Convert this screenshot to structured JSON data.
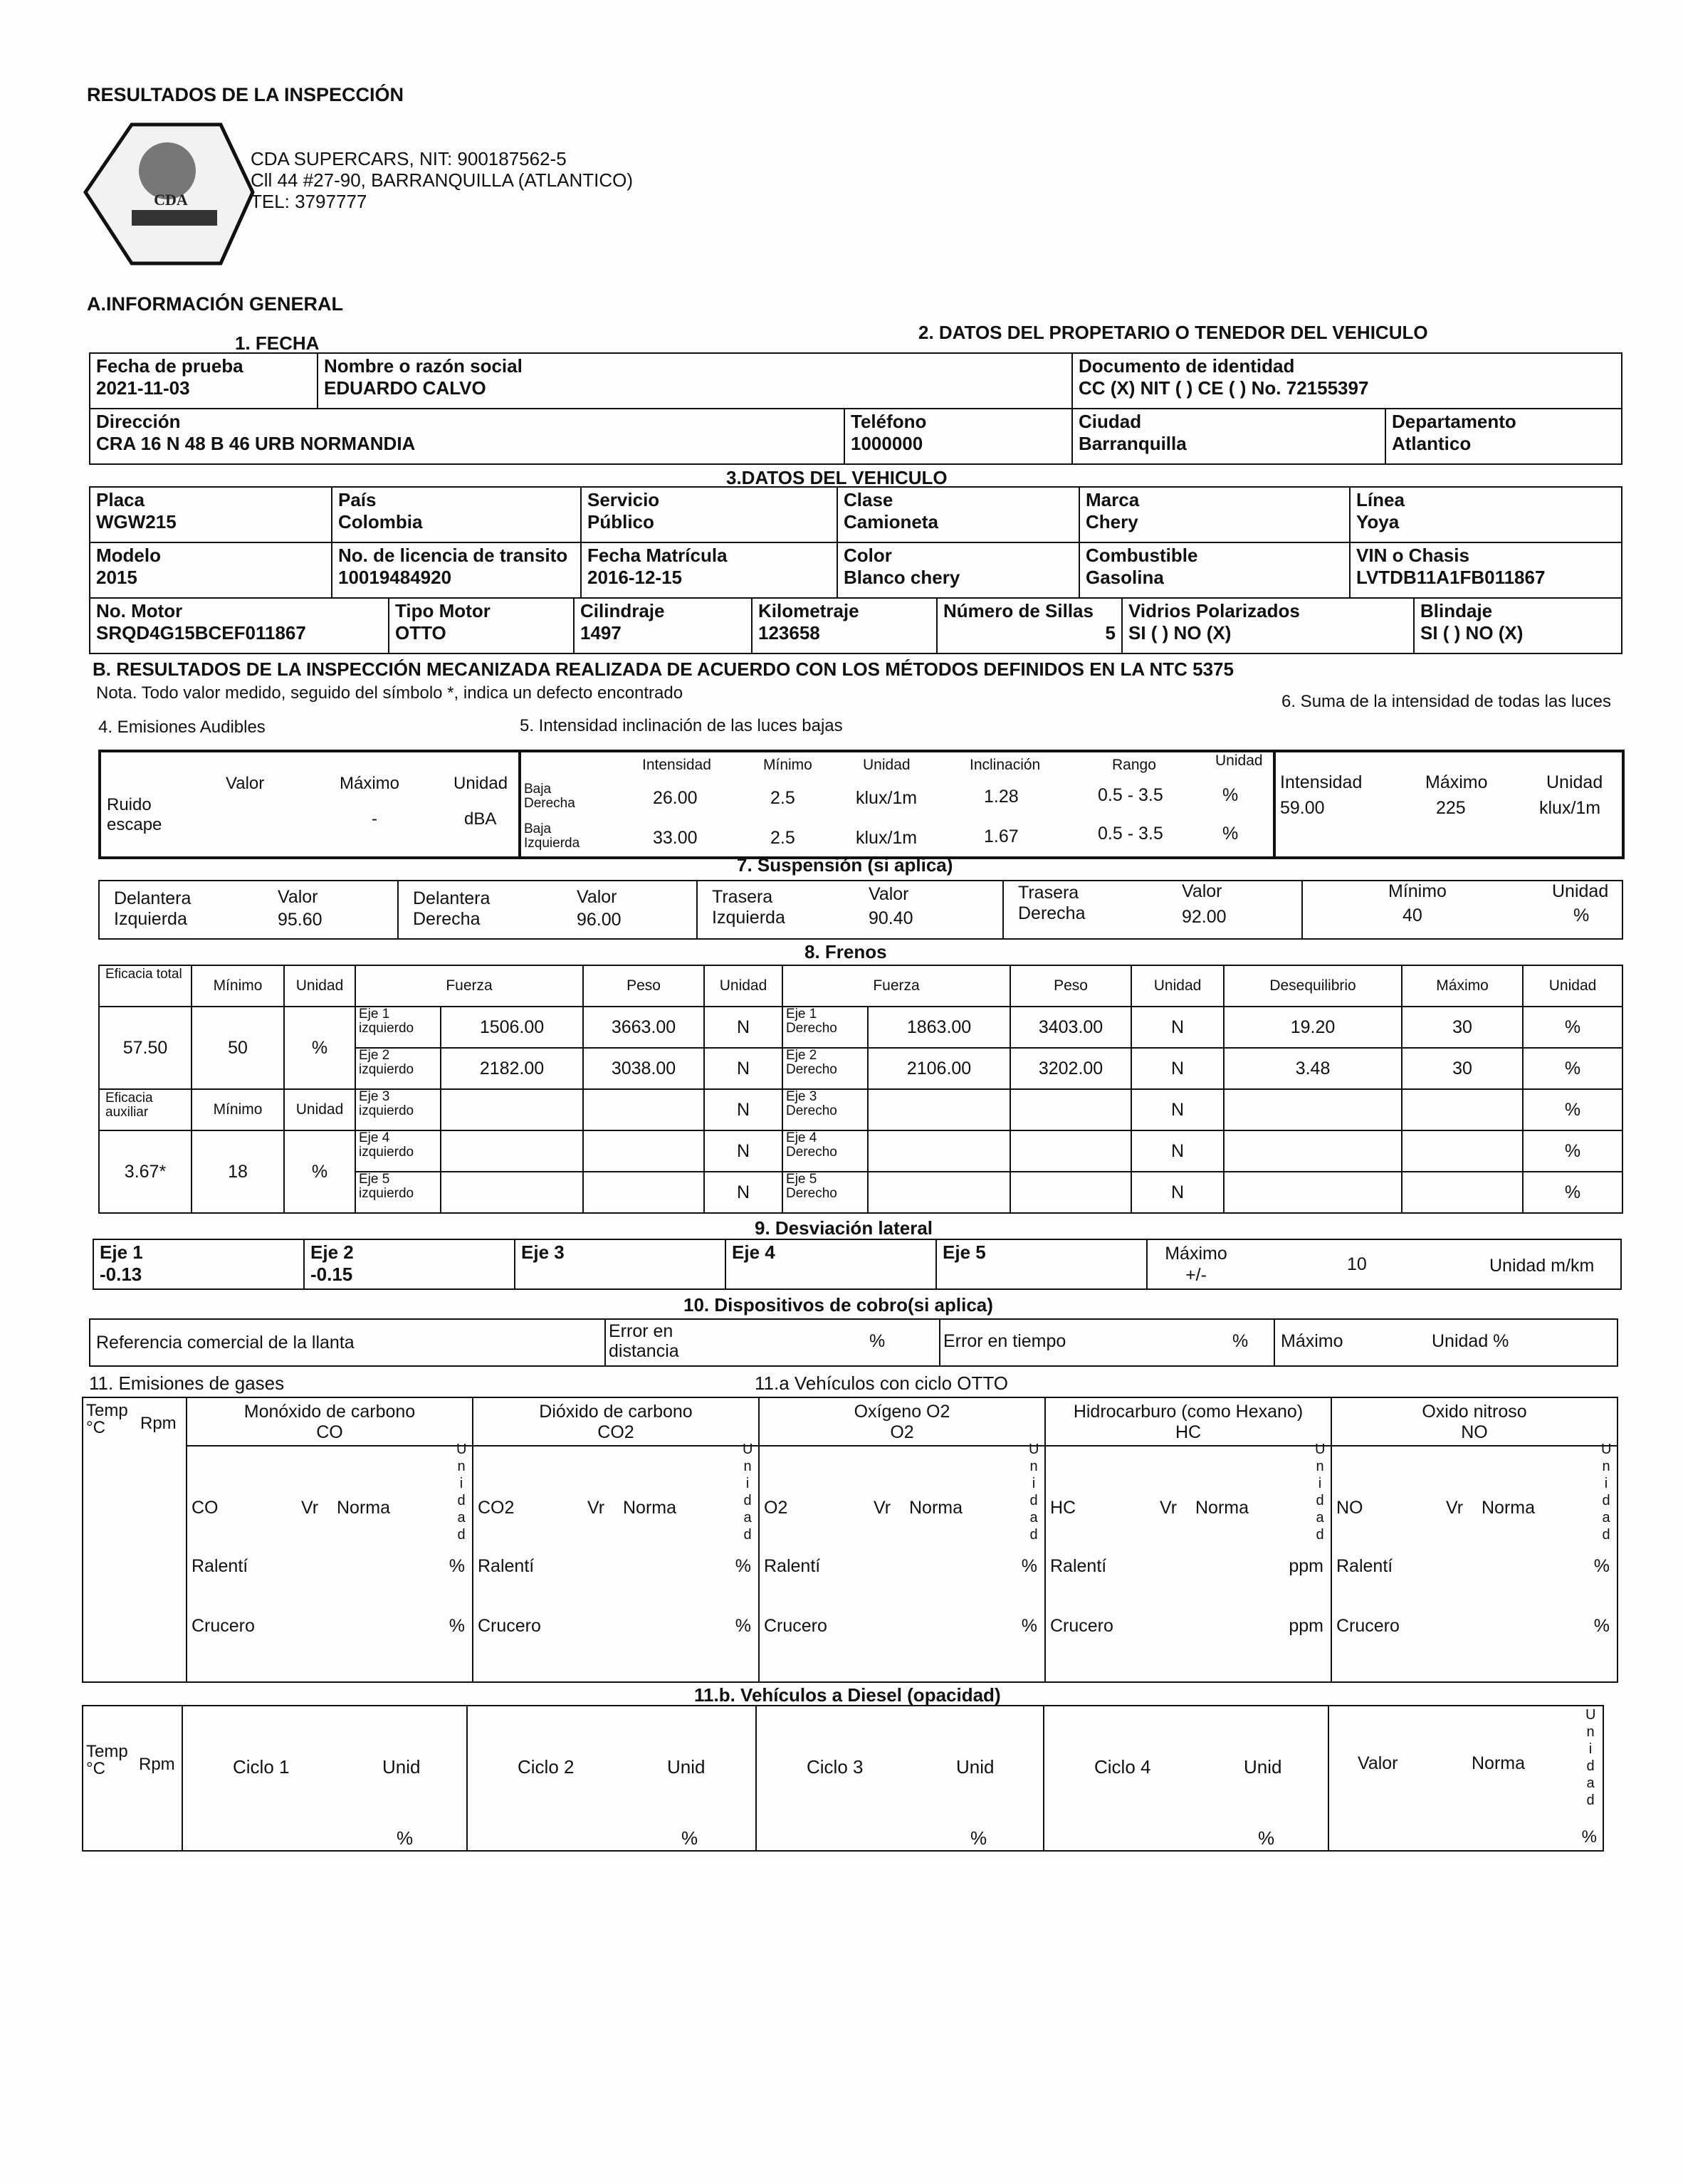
{
  "header": {
    "title": "RESULTADOS DE LA INSPECCIÓN",
    "logo_text": "CDA SUPERCARS",
    "company": "CDA SUPERCARS, NIT: 900187562-5",
    "address": "Cll 44 #27-90, BARRANQUILLA (ATLANTICO)",
    "phone": "TEL: 3797777"
  },
  "general": {
    "section_title": "A.INFORMACIÓN GENERAL",
    "fecha_title": "1. FECHA",
    "owner_title": "2. DATOS DEL PROPETARIO O TENEDOR DEL VEHICULO",
    "fecha_label": "Fecha de prueba",
    "fecha": "2021-11-03",
    "nombre_label": "Nombre o razón social",
    "nombre": "EDUARDO CALVO",
    "doc_label": "Documento de identidad",
    "doc": "CC (X) NIT ( ) CE ( ) No. 72155397",
    "direccion_label": "Dirección",
    "direccion": "CRA 16 N 48 B 46 URB NORMANDIA",
    "telefono_label": "Teléfono",
    "telefono": "1000000",
    "ciudad_label": "Ciudad",
    "ciudad": "Barranquilla",
    "depto_label": "Departamento",
    "depto": "Atlantico"
  },
  "vehicle": {
    "title": "3.DATOS DEL VEHICULO",
    "placa_label": "Placa",
    "placa": "WGW215",
    "pais_label": "País",
    "pais": "Colombia",
    "servicio_label": "Servicio",
    "servicio": "Público",
    "clase_label": "Clase",
    "clase": "Camioneta",
    "marca_label": "Marca",
    "marca": "Chery",
    "linea_label": "Línea",
    "linea": "Yoya",
    "modelo_label": "Modelo",
    "modelo": "2015",
    "licencia_label": "No. de licencia de transito",
    "licencia": "10019484920",
    "matricula_label": "Fecha Matrícula",
    "matricula": "2016-12-15",
    "color_label": "Color",
    "color": "Blanco chery",
    "combustible_label": "Combustible",
    "combustible": "Gasolina",
    "vin_label": "VIN o Chasis",
    "vin": "LVTDB11A1FB011867",
    "motor_label": "No. Motor",
    "motor": "SRQD4G15BCEF011867",
    "tipo_motor_label": "Tipo Motor",
    "tipo_motor": "OTTO",
    "cilindraje_label": "Cilindraje",
    "cilindraje": "1497",
    "km_label": "Kilometraje",
    "km": "123658",
    "sillas_label": "Número de Sillas",
    "sillas": "5",
    "vidrios_label": "Vidrios Polarizados",
    "vidrios": "SI ( ) NO (X)",
    "blindaje_label": "Blindaje",
    "blindaje": "SI ( ) NO (X)"
  },
  "results": {
    "title": "B. RESULTADOS DE LA INSPECCIÓN MECANIZADA REALIZADA DE ACUERDO CON LOS MÉTODOS DEFINIDOS EN LA NTC 5375",
    "note": "Nota. Todo valor medido, seguido del símbolo *, indica un defecto encontrado"
  },
  "audibles": {
    "title": "4. Emisiones Audibles",
    "valor_label": "Valor",
    "maximo_label": "Máximo",
    "unidad_label": "Unidad",
    "row_label": "Ruido escape",
    "valor": "",
    "maximo": "-",
    "unidad": "dBA"
  },
  "luces": {
    "title": "5. Intensidad inclinación de las luces bajas",
    "headers": [
      "Intensidad",
      "Mínimo",
      "Unidad",
      "Inclinación",
      "Rango",
      "Unidad"
    ],
    "rows": [
      {
        "label": "Baja Derecha",
        "intensidad": "26.00",
        "minimo": "2.5",
        "unidad": "klux/1m",
        "inclinacion": "1.28",
        "rango": "0.5 - 3.5",
        "unidad2": "%"
      },
      {
        "label": "Baja Izquierda",
        "intensidad": "33.00",
        "minimo": "2.5",
        "unidad": "klux/1m",
        "inclinacion": "1.67",
        "rango": "0.5 - 3.5",
        "unidad2": "%"
      }
    ]
  },
  "suma_luces": {
    "title": "6. Suma de la intensidad de todas las luces",
    "intensidad_label": "Intensidad",
    "maximo_label": "Máximo",
    "unidad_label": "Unidad",
    "intensidad": "59.00",
    "maximo": "225",
    "unidad": "klux/1m"
  },
  "suspension": {
    "title": "7. Suspensión (si aplica)",
    "valor_label": "Valor",
    "items": [
      {
        "label": "Delantera Izquierda",
        "valor": "95.60"
      },
      {
        "label": "Delantera Derecha",
        "valor": "96.00"
      },
      {
        "label": "Trasera Izquierda",
        "valor": "90.40"
      },
      {
        "label": "Trasera Derecha",
        "valor": "92.00"
      }
    ],
    "minimo_label": "Mínimo",
    "minimo": "40",
    "unidad_label": "Unidad",
    "unidad": "%"
  },
  "frenos": {
    "title": "8. Frenos",
    "eficacia_total_label": "Eficacia total",
    "eficacia_total": "57.50",
    "total_minimo": "50",
    "total_unidad": "%",
    "eficacia_aux_label": "Eficacia auxiliar",
    "eficacia_aux": "3.67*",
    "aux_minimo": "18",
    "aux_unidad": "%",
    "minimo_label": "Mínimo",
    "unidad_label": "Unidad",
    "fuerza_label": "Fuerza",
    "peso_label": "Peso",
    "deseq_label": "Desequilibrio",
    "maximo_label": "Máximo",
    "rows": [
      {
        "izq": "Eje 1 izquierdo",
        "fi": "1506.00",
        "pi": "3663.00",
        "ui": "N",
        "der": "Eje 1 Derecho",
        "fd": "1863.00",
        "pd": "3403.00",
        "ud": "N",
        "deseq": "19.20",
        "max": "30",
        "u": "%"
      },
      {
        "izq": "Eje 2 izquierdo",
        "fi": "2182.00",
        "pi": "3038.00",
        "ui": "N",
        "der": "Eje 2 Derecho",
        "fd": "2106.00",
        "pd": "3202.00",
        "ud": "N",
        "deseq": "3.48",
        "max": "30",
        "u": "%"
      },
      {
        "izq": "Eje 3 izquierdo",
        "fi": "",
        "pi": "",
        "ui": "N",
        "der": "Eje 3 Derecho",
        "fd": "",
        "pd": "",
        "ud": "N",
        "deseq": "",
        "max": "",
        "u": "%"
      },
      {
        "izq": "Eje 4 izquierdo",
        "fi": "",
        "pi": "",
        "ui": "N",
        "der": "Eje 4 Derecho",
        "fd": "",
        "pd": "",
        "ud": "N",
        "deseq": "",
        "max": "",
        "u": "%"
      },
      {
        "izq": "Eje 5 izquierdo",
        "fi": "",
        "pi": "",
        "ui": "N",
        "der": "Eje 5 Derecho",
        "fd": "",
        "pd": "",
        "ud": "N",
        "deseq": "",
        "max": "",
        "u": "%"
      }
    ]
  },
  "desviacion": {
    "title": "9. Desviación lateral",
    "ejes": [
      {
        "label": "Eje 1",
        "valor": "-0.13"
      },
      {
        "label": "Eje 2",
        "valor": "-0.15"
      },
      {
        "label": "Eje 3",
        "valor": ""
      },
      {
        "label": "Eje 4",
        "valor": ""
      },
      {
        "label": "Eje 5",
        "valor": ""
      }
    ],
    "maximo_label": "Máximo +/-",
    "maximo": "10",
    "unidad": "Unidad m/km"
  },
  "cobro": {
    "title": "10. Dispositivos de cobro(si aplica)",
    "llanta_label": "Referencia comercial de la llanta",
    "error_dist_label": "Error en distancia",
    "error_dist_unit": "%",
    "error_tiempo_label": "Error en tiempo",
    "error_tiempo_unit": "%",
    "maximo_label": "Máximo",
    "unidad_label": "Unidad %"
  },
  "gases": {
    "title": "11. Emisiones de gases",
    "otto_title": "11.a Vehículos con ciclo OTTO",
    "temp_label": "Temp °C",
    "rpm_label": "Rpm",
    "vr_label": "Vr",
    "norma_label": "Norma",
    "unidad_vertical": "Unidad",
    "ralenti_label": "Ralentí",
    "crucero_label": "Crucero",
    "gases": [
      {
        "name": "Monóxido de carbono",
        "formula": "CO",
        "unit": "%"
      },
      {
        "name": "Dióxido de carbono",
        "formula": "CO2",
        "unit": "%"
      },
      {
        "name": "Oxígeno O2",
        "formula": "O2",
        "unit": "%"
      },
      {
        "name": "Hidrocarburo (como Hexano)",
        "formula": "HC",
        "unit": "ppm"
      },
      {
        "name": "Oxido nitroso",
        "formula": "NO",
        "unit": "%"
      }
    ]
  },
  "diesel": {
    "title": "11.b. Vehículos a Diesel (opacidad)",
    "temp_label": "Temp °C",
    "rpm_label": "Rpm",
    "ciclos": [
      "Ciclo 1",
      "Ciclo 2",
      "Ciclo 3",
      "Ciclo 4"
    ],
    "unid_label": "Unid",
    "unit": "%",
    "valor_label": "Valor",
    "norma_label": "Norma",
    "unidad_vertical": "Unidad"
  }
}
